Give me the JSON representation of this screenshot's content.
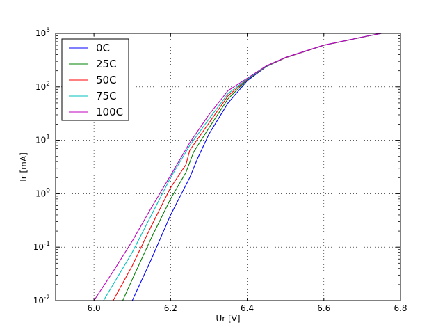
{
  "chart_data": {
    "type": "line",
    "xlabel": "Ur [V]",
    "ylabel": "Ir [mA]",
    "xlim": [
      5.9,
      6.8
    ],
    "ylim": [
      0.01,
      1000
    ],
    "yscale": "log",
    "grid": true,
    "legend_position": "top-left",
    "x_ticks": [
      "6.0",
      "6.2",
      "6.4",
      "6.6",
      "6.8"
    ],
    "y_ticks": [
      {
        "base": "10",
        "exp": "-2"
      },
      {
        "base": "10",
        "exp": "-1"
      },
      {
        "base": "10",
        "exp": "0"
      },
      {
        "base": "10",
        "exp": "1"
      },
      {
        "base": "10",
        "exp": "2"
      },
      {
        "base": "10",
        "exp": "3"
      }
    ],
    "series": [
      {
        "name": "0C",
        "color": "#0000ff",
        "x": [
          6.1,
          6.15,
          6.2,
          6.25,
          6.27,
          6.3,
          6.35,
          6.4,
          6.45,
          6.5,
          6.6,
          6.7,
          6.75
        ],
        "y": [
          0.01,
          0.06,
          0.4,
          2.0,
          4.5,
          13,
          50,
          130,
          240,
          350,
          600,
          850,
          1000
        ]
      },
      {
        "name": "25C",
        "color": "#008000",
        "x": [
          6.075,
          6.1,
          6.15,
          6.2,
          6.24,
          6.26,
          6.3,
          6.35,
          6.4,
          6.45,
          6.5,
          6.6,
          6.7,
          6.75
        ],
        "y": [
          0.01,
          0.025,
          0.15,
          0.8,
          2.5,
          6,
          17,
          60,
          135,
          242,
          350,
          600,
          850,
          1000
        ]
      },
      {
        "name": "50C",
        "color": "#ff0000",
        "x": [
          6.05,
          6.1,
          6.15,
          6.2,
          6.24,
          6.25,
          6.3,
          6.35,
          6.4,
          6.45,
          6.5,
          6.6,
          6.7,
          6.75
        ],
        "y": [
          0.01,
          0.045,
          0.25,
          1.3,
          3.5,
          6.5,
          21,
          68,
          138,
          244,
          352,
          600,
          850,
          1000
        ]
      },
      {
        "name": "75C",
        "color": "#00bfbf",
        "x": [
          6.025,
          6.05,
          6.1,
          6.15,
          6.2,
          6.25,
          6.3,
          6.35,
          6.4,
          6.45,
          6.5,
          6.6,
          6.7,
          6.75
        ],
        "y": [
          0.01,
          0.02,
          0.08,
          0.4,
          2.0,
          8,
          25,
          75,
          140,
          246,
          354,
          602,
          852,
          1000
        ]
      },
      {
        "name": "100C",
        "color": "#bf00bf",
        "x": [
          6.0,
          6.05,
          6.1,
          6.15,
          6.2,
          6.25,
          6.3,
          6.35,
          6.4,
          6.45,
          6.5,
          6.6,
          6.7,
          6.75
        ],
        "y": [
          0.01,
          0.035,
          0.13,
          0.55,
          2.2,
          9,
          30,
          85,
          145,
          248,
          356,
          604,
          854,
          1000
        ]
      }
    ]
  }
}
